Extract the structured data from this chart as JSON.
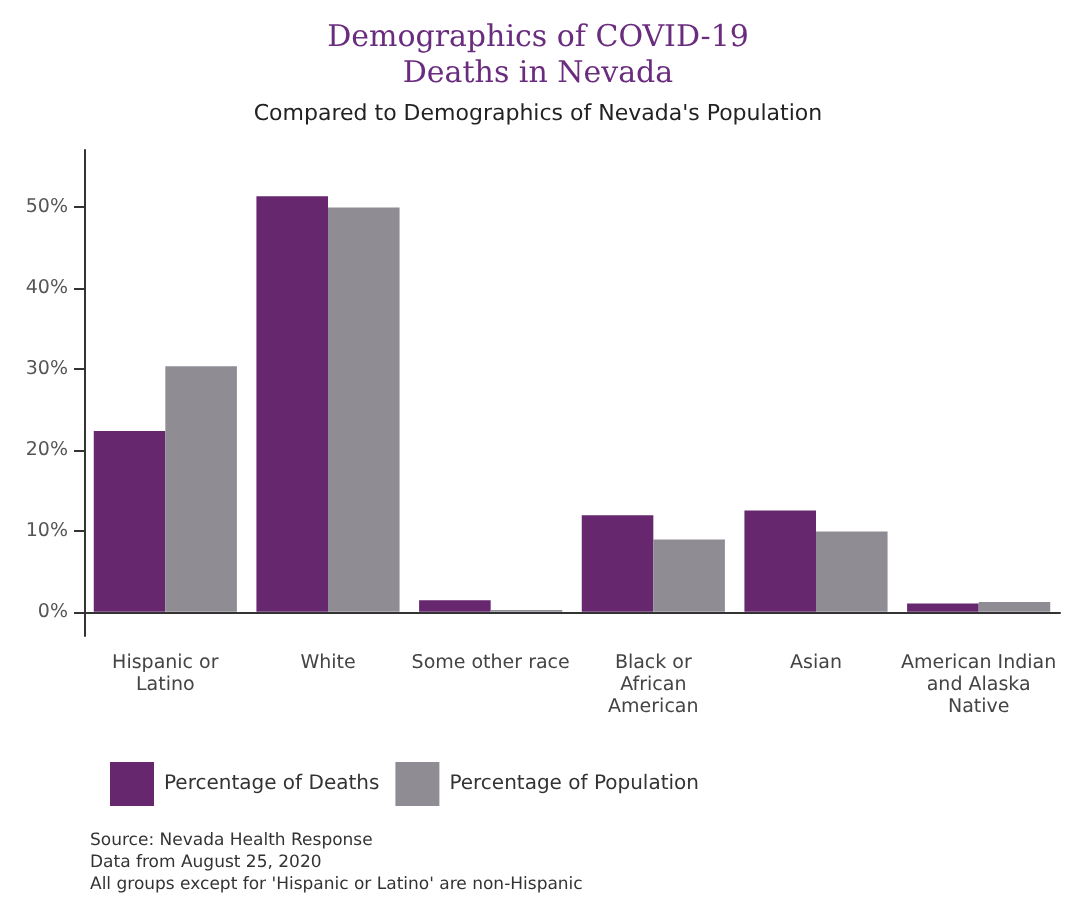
{
  "chart_data": {
    "type": "bar",
    "title": "Demographics of COVID-19\nDeaths in Nevada",
    "subtitle": "Compared to Demographics of Nevada's Population",
    "categories": [
      "Hispanic or\nLatino",
      "White",
      "Some other race",
      "Black or\nAfrican\nAmerican",
      "Asian",
      "American Indian\nand Alaska\nNative"
    ],
    "series": [
      {
        "name": "Percentage of Deaths",
        "color": "#66276f",
        "values": [
          22.3,
          51.3,
          1.4,
          11.9,
          12.5,
          1.0
        ]
      },
      {
        "name": "Percentage of Population",
        "color": "#8f8c94",
        "values": [
          30.3,
          49.9,
          0.2,
          8.9,
          9.9,
          1.2
        ]
      }
    ],
    "ylim": [
      -3,
      57
    ],
    "yticks": [
      {
        "value": 0,
        "label": "0%"
      },
      {
        "value": 10,
        "label": "10%"
      },
      {
        "value": 20,
        "label": "20%"
      },
      {
        "value": 30,
        "label": "30%"
      },
      {
        "value": 40,
        "label": "40%"
      },
      {
        "value": 50,
        "label": "50%"
      }
    ],
    "grid": false,
    "legend": "bottom left",
    "annotations": [
      "Source: Nevada Health Response\nData from August 25, 2020\nAll groups except for 'Hispanic or Latino' are non-Hispanic"
    ]
  }
}
